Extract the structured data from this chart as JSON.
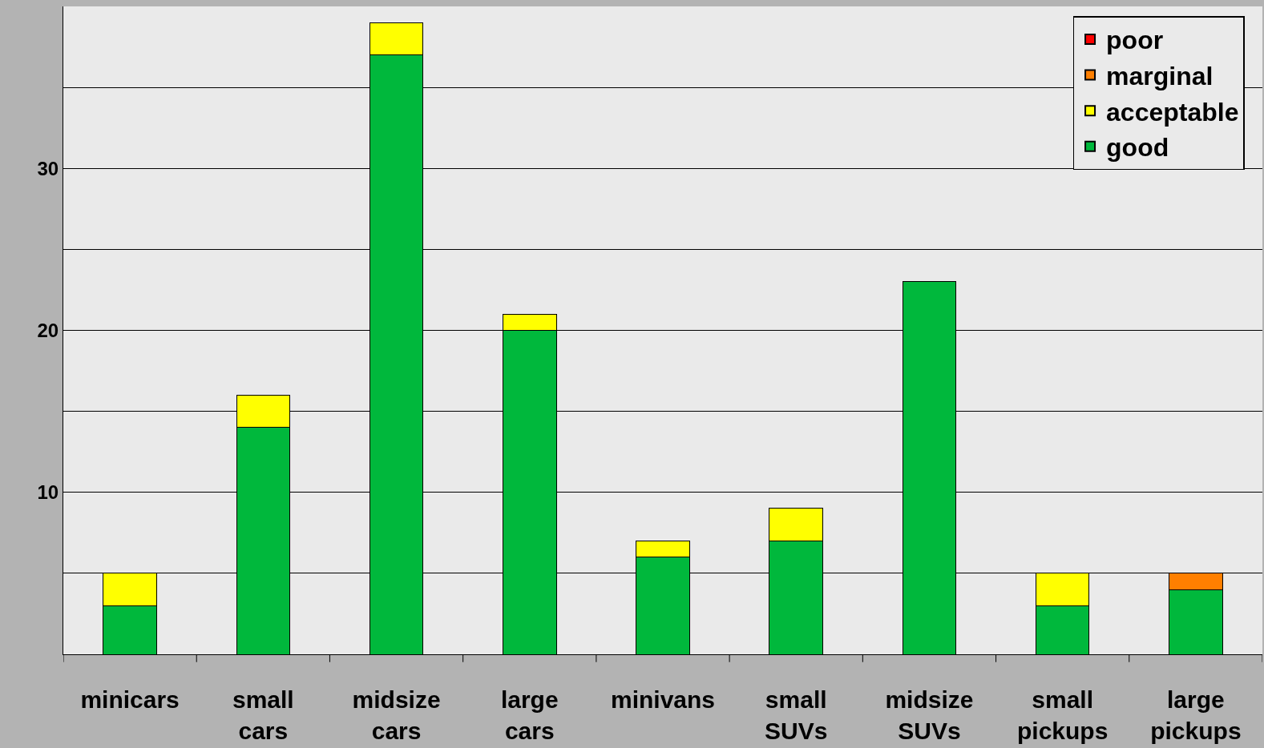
{
  "chart_data": {
    "type": "bar",
    "stacked": true,
    "categories": [
      "minicars",
      "small cars",
      "midsize cars",
      "large cars",
      "minivans",
      "small SUVs",
      "midsize SUVs",
      "small pickups",
      "large pickups"
    ],
    "series": [
      {
        "name": "good",
        "color": "#00b83c",
        "values": [
          3,
          14,
          37,
          20,
          6,
          7,
          23,
          3,
          4
        ]
      },
      {
        "name": "acceptable",
        "color": "#ffff00",
        "values": [
          2,
          2,
          2,
          1,
          1,
          2,
          null,
          2,
          null
        ]
      },
      {
        "name": "marginal",
        "color": "#ff7f00",
        "values": [
          null,
          null,
          null,
          null,
          null,
          null,
          null,
          null,
          1
        ]
      },
      {
        "name": "poor",
        "color": "#ff0000",
        "values": [
          null,
          null,
          null,
          null,
          null,
          null,
          null,
          null,
          null
        ]
      }
    ],
    "ylim": [
      0,
      40
    ],
    "yticks": [
      {
        "value": 5,
        "label": null
      },
      10,
      {
        "value": 15,
        "label": null
      },
      20,
      {
        "value": 25,
        "label": null
      },
      30,
      {
        "value": 35,
        "label": null
      }
    ],
    "grid": "y",
    "legend": "top right"
  }
}
